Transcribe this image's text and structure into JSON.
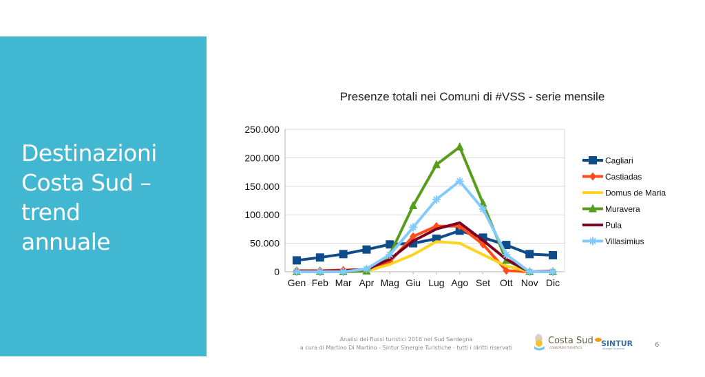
{
  "slide": {
    "title": "Destinazioni\nCosta Sud –\ntrend\nannuale",
    "panel_color": "#41b7d2",
    "footer_line1": "Analisi dei flussi turistici 2016 nel Sud Sardegna",
    "footer_line2": "a cura di Martino Di Martino - Sintur Sinergie Turistiche - tutti i diritti riservati",
    "logo_costa_sud": "Costa Sud",
    "logo_costa_sud_sub": "CONSORZIO TURISTICO",
    "logo_sintur": "SINTUR",
    "logo_sintur_sub": "Sinergie Turistiche",
    "page_number": "6"
  },
  "chart_data": {
    "type": "line",
    "title": "Presenze totali nei Comuni di #VSS - serie mensile",
    "xlabel": "",
    "ylabel": "",
    "categories": [
      "Gen",
      "Feb",
      "Mar",
      "Apr",
      "Mag",
      "Giu",
      "Lug",
      "Ago",
      "Set",
      "Ott",
      "Nov",
      "Dic"
    ],
    "ylim": [
      0,
      250000
    ],
    "yticks": [
      0,
      50000,
      100000,
      150000,
      200000,
      250000
    ],
    "ytick_labels": [
      "0",
      "50.000",
      "100.000",
      "150.000",
      "200.000",
      "250.000"
    ],
    "grid": true,
    "legend_position": "right",
    "series": [
      {
        "name": "Cagliari",
        "color": "#0f4c8a",
        "marker": "square",
        "values": [
          20000,
          25000,
          31000,
          39000,
          48000,
          50000,
          58000,
          72000,
          60000,
          47000,
          31000,
          29000
        ]
      },
      {
        "name": "Castiadas",
        "color": "#ff4c1a",
        "marker": "diamond",
        "values": [
          2000,
          2000,
          3000,
          4000,
          18000,
          62000,
          80000,
          80000,
          48000,
          2000,
          0,
          0
        ]
      },
      {
        "name": "Domus de Maria",
        "color": "#ffd320",
        "marker": "none",
        "values": [
          0,
          0,
          0,
          1000,
          13000,
          30000,
          53000,
          50000,
          30000,
          10000,
          0,
          0
        ]
      },
      {
        "name": "Muravera",
        "color": "#579d1c",
        "marker": "triangle",
        "values": [
          0,
          0,
          0,
          1000,
          30000,
          116000,
          188000,
          219000,
          120000,
          20000,
          0,
          0
        ]
      },
      {
        "name": "Pula",
        "color": "#7e0021",
        "marker": "none",
        "values": [
          1000,
          1000,
          2000,
          4000,
          22000,
          54000,
          75000,
          86000,
          55000,
          22000,
          0,
          1000
        ]
      },
      {
        "name": "Villasimius",
        "color": "#83caff",
        "marker": "star",
        "values": [
          0,
          0,
          0,
          5000,
          30000,
          78000,
          127000,
          159000,
          110000,
          30000,
          0,
          0
        ]
      }
    ]
  }
}
